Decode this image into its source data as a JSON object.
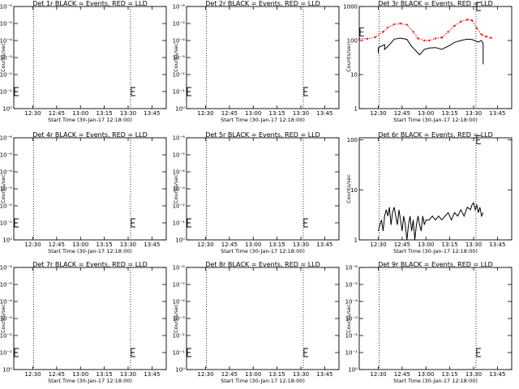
{
  "figure": {
    "background": "#ffffff",
    "axis_color": "#000000",
    "events_color": "#000000",
    "lld_color": "#ff0000"
  },
  "chart_data": [
    {
      "type": "line",
      "title": "Det 1r BLACK = Events, RED = LLD",
      "xlabel": "Start Time (30-Jan-17 12:18:00)",
      "ylabel": "Counts/sec",
      "x_ticks": [
        "12:30",
        "12:45",
        "13:00",
        "13:15",
        "13:30",
        "13:45"
      ],
      "y_scale": "log",
      "y_ticks": [
        "10⁰",
        "10⁻¹",
        "10⁻²",
        "10⁻³",
        "10⁻⁴",
        "10⁻⁵",
        "10⁻⁶"
      ],
      "y_tick_values": [
        1,
        0.1,
        0.01,
        0.001,
        0.0001,
        1e-05,
        1e-06
      ],
      "ylim": [
        1,
        1e-06
      ],
      "xlim": [
        "12:18",
        "13:54"
      ],
      "vlines": [
        "12:30:30",
        "13:31:30"
      ],
      "markers": [
        {
          "x": "12:18:30",
          "y": 0.1
        },
        {
          "x": "13:32",
          "y": 0.1
        }
      ],
      "series": []
    },
    {
      "type": "line",
      "title": "Det 2r BLACK = Events, RED = LLD",
      "xlabel": "Start Time (30-Jan-17 12:18:00)",
      "ylabel": "Counts/sec",
      "x_ticks": [
        "12:30",
        "12:45",
        "13:00",
        "13:15",
        "13:30",
        "13:45"
      ],
      "y_scale": "log",
      "y_ticks": [
        "10⁰",
        "10⁻¹",
        "10⁻²",
        "10⁻³",
        "10⁻⁴",
        "10⁻⁵",
        "10⁻⁶"
      ],
      "y_tick_values": [
        1,
        0.1,
        0.01,
        0.001,
        0.0001,
        1e-05,
        1e-06
      ],
      "ylim": [
        1,
        1e-06
      ],
      "xlim": [
        "12:18",
        "13:54"
      ],
      "vlines": [
        "12:30:30",
        "13:31:30"
      ],
      "markers": [
        {
          "x": "12:18:30",
          "y": 0.1
        },
        {
          "x": "13:32",
          "y": 0.1
        }
      ],
      "series": []
    },
    {
      "type": "line",
      "title": "Det 3r BLACK = Events, RED = LLD",
      "xlabel": "Start Time (30-Jan-17 12:18:00)",
      "ylabel": "Counts/sec",
      "x_ticks": [
        "12:30",
        "12:45",
        "13:00",
        "13:15",
        "13:30",
        "13:45"
      ],
      "y_scale": "log",
      "y_ticks": [
        "1",
        "10",
        "100",
        "1000"
      ],
      "y_tick_values": [
        1,
        10,
        100,
        1000
      ],
      "ylim": [
        1,
        1000
      ],
      "xlim": [
        "12:18",
        "13:54"
      ],
      "vlines": [
        "12:30:30",
        "13:31:30"
      ],
      "markers": [
        {
          "x": "12:18:30",
          "y": 180
        },
        {
          "x": "13:32",
          "y": 1000
        }
      ],
      "series": [
        {
          "role": "lld",
          "color": "#ff0000",
          "dotted": true,
          "x": [
            "12:18",
            "12:23",
            "12:28",
            "12:33",
            "12:36",
            "12:40",
            "12:44",
            "12:48",
            "12:52",
            "12:55",
            "12:59",
            "13:02",
            "13:06",
            "13:10",
            "13:14",
            "13:18",
            "13:22",
            "13:26",
            "13:29",
            "13:32",
            "13:35",
            "13:38",
            "13:41"
          ],
          "values": [
            112,
            112,
            125,
            180,
            240,
            300,
            315,
            290,
            180,
            115,
            100,
            100,
            115,
            122,
            180,
            270,
            360,
            410,
            390,
            230,
            150,
            130,
            120
          ]
        },
        {
          "role": "events",
          "color": "#000000",
          "x": [
            "12:30",
            "12:30",
            "12:34",
            "12:34",
            "12:37",
            "12:40",
            "12:44",
            "12:48",
            "12:51",
            "12:54",
            "12:56",
            "12:59",
            "13:02",
            "13:06",
            "13:10",
            "13:14",
            "13:18",
            "13:22",
            "13:26",
            "13:29",
            "13:31",
            "13:33",
            "13:34",
            "13:35",
            "13:36",
            "13:36"
          ],
          "values": [
            42,
            62,
            75,
            55,
            75,
            110,
            118,
            108,
            67,
            48,
            38,
            55,
            60,
            62,
            55,
            68,
            88,
            100,
            110,
            107,
            98,
            90,
            95,
            100,
            80,
            20
          ]
        }
      ]
    },
    {
      "type": "line",
      "title": "Det 4r BLACK = Events, RED = LLD",
      "xlabel": "Start Time (30-Jan-17 12:18:00)",
      "ylabel": "Counts/sec",
      "x_ticks": [
        "12:30",
        "12:45",
        "13:00",
        "13:15",
        "13:30",
        "13:45"
      ],
      "y_scale": "log",
      "y_ticks": [
        "10⁰",
        "10⁻¹",
        "10⁻²",
        "10⁻³",
        "10⁻⁴",
        "10⁻⁵",
        "10⁻⁶"
      ],
      "y_tick_values": [
        1,
        0.1,
        0.01,
        0.001,
        0.0001,
        1e-05,
        1e-06
      ],
      "ylim": [
        1,
        1e-06
      ],
      "xlim": [
        "12:18",
        "13:54"
      ],
      "vlines": [
        "12:30:30",
        "13:31:30"
      ],
      "markers": [
        {
          "x": "12:18:30",
          "y": 0.1
        },
        {
          "x": "13:32",
          "y": 0.1
        }
      ],
      "series": []
    },
    {
      "type": "line",
      "title": "Det 5r BLACK = Events, RED = LLD",
      "xlabel": "Start Time (30-Jan-17 12:18:00)",
      "ylabel": "Counts/sec",
      "x_ticks": [
        "12:30",
        "12:45",
        "13:00",
        "13:15",
        "13:30",
        "13:45"
      ],
      "y_scale": "log",
      "y_ticks": [
        "10⁰",
        "10⁻¹",
        "10⁻²",
        "10⁻³",
        "10⁻⁴",
        "10⁻⁵",
        "10⁻⁶"
      ],
      "y_tick_values": [
        1,
        0.1,
        0.01,
        0.001,
        0.0001,
        1e-05,
        1e-06
      ],
      "ylim": [
        1,
        1e-06
      ],
      "xlim": [
        "12:18",
        "13:54"
      ],
      "vlines": [
        "12:30:30",
        "13:31:30"
      ],
      "markers": [
        {
          "x": "12:18:30",
          "y": 0.1
        },
        {
          "x": "13:32",
          "y": 0.1
        }
      ],
      "series": []
    },
    {
      "type": "line",
      "title": "Det 6r BLACK = Events, RED = LLD",
      "xlabel": "Start Time (30-Jan-17 12:18:00)",
      "ylabel": "Counts/sec",
      "x_ticks": [
        "12:30",
        "12:45",
        "13:00",
        "13:15",
        "13:30",
        "13:45"
      ],
      "y_scale": "log",
      "y_ticks": [
        "1",
        "10",
        "100"
      ],
      "y_tick_values": [
        1,
        10,
        100
      ],
      "ylim": [
        1,
        110
      ],
      "xlim": [
        "12:18",
        "13:54"
      ],
      "vlines": [
        "12:30:30",
        "13:31:30"
      ],
      "markers": [
        {
          "x": "13:32",
          "y": 100
        }
      ],
      "series": [
        {
          "role": "events",
          "color": "#000000",
          "x": [
            "12:30",
            "12:31",
            "12:32",
            "12:33",
            "12:34",
            "12:35",
            "12:36",
            "12:37",
            "12:38",
            "12:39",
            "12:40",
            "12:41",
            "12:42",
            "12:43",
            "12:44",
            "12:45",
            "12:46",
            "12:47",
            "12:48",
            "12:49",
            "12:50",
            "12:51",
            "12:52",
            "12:53",
            "12:54",
            "12:55",
            "12:56",
            "12:57",
            "12:58",
            "12:59",
            "13:00",
            "13:02",
            "13:04",
            "13:06",
            "13:08",
            "13:10",
            "13:12",
            "13:14",
            "13:16",
            "13:18",
            "13:20",
            "13:22",
            "13:24",
            "13:26",
            "13:28",
            "13:29",
            "13:30",
            "13:31",
            "13:32",
            "13:33",
            "13:34",
            "13:35",
            "13:36"
          ],
          "values": [
            1.5,
            2,
            2.5,
            1.5,
            3,
            4,
            3,
            4.5,
            2,
            3.5,
            4.5,
            3,
            2,
            4,
            2.5,
            1.5,
            3,
            2,
            1,
            2,
            3,
            1.5,
            2.5,
            1,
            2,
            3,
            2,
            1.5,
            3,
            2,
            2.5,
            2.5,
            3,
            2.5,
            3,
            2.5,
            3,
            3.5,
            2.5,
            3.5,
            3,
            4,
            3,
            4.5,
            4,
            5,
            5.5,
            4,
            5,
            3.5,
            4.5,
            3,
            3.5
          ]
        }
      ]
    },
    {
      "type": "line",
      "title": "Det 7r BLACK = Events, RED = LLD",
      "xlabel": "Start Time (30-Jan-17 12:18:00)",
      "ylabel": "Counts/sec",
      "x_ticks": [
        "12:30",
        "12:45",
        "13:00",
        "13:15",
        "13:30",
        "13:45"
      ],
      "y_scale": "log",
      "y_ticks": [
        "10⁰",
        "10⁻¹",
        "10⁻²",
        "10⁻³",
        "10⁻⁴",
        "10⁻⁵",
        "10⁻⁶"
      ],
      "y_tick_values": [
        1,
        0.1,
        0.01,
        0.001,
        0.0001,
        1e-05,
        1e-06
      ],
      "ylim": [
        1,
        1e-06
      ],
      "xlim": [
        "12:18",
        "13:54"
      ],
      "vlines": [
        "12:30:30",
        "13:31:30"
      ],
      "markers": [
        {
          "x": "12:18:30",
          "y": 0.1
        },
        {
          "x": "13:32",
          "y": 0.1
        }
      ],
      "series": []
    },
    {
      "type": "line",
      "title": "Det 8r BLACK = Events, RED = LLD",
      "xlabel": "Start Time (30-Jan-17 12:18:00)",
      "ylabel": "Counts/sec",
      "x_ticks": [
        "12:30",
        "12:45",
        "13:00",
        "13:15",
        "13:30",
        "13:45"
      ],
      "y_scale": "log",
      "y_ticks": [
        "10⁰",
        "10⁻¹",
        "10⁻²",
        "10⁻³",
        "10⁻⁴",
        "10⁻⁵",
        "10⁻⁶"
      ],
      "y_tick_values": [
        1,
        0.1,
        0.01,
        0.001,
        0.0001,
        1e-05,
        1e-06
      ],
      "ylim": [
        1,
        1e-06
      ],
      "xlim": [
        "12:18",
        "13:54"
      ],
      "vlines": [
        "12:30:30",
        "13:31:30"
      ],
      "markers": [
        {
          "x": "12:18:30",
          "y": 0.1
        },
        {
          "x": "13:32",
          "y": 0.1
        }
      ],
      "series": []
    },
    {
      "type": "line",
      "title": "Det 9r BLACK = Events, RED = LLD",
      "xlabel": "Start Time (30-Jan-17 12:18:00)",
      "ylabel": "Counts/sec",
      "x_ticks": [
        "12:30",
        "12:45",
        "13:00",
        "13:15",
        "13:30",
        "13:45"
      ],
      "y_scale": "log",
      "y_ticks": [
        "10⁰",
        "10⁻¹",
        "10⁻²",
        "10⁻³",
        "10⁻⁴",
        "10⁻⁵",
        "10⁻⁶"
      ],
      "y_tick_values": [
        1,
        0.1,
        0.01,
        0.001,
        0.0001,
        1e-05,
        1e-06
      ],
      "ylim": [
        1,
        1e-06
      ],
      "xlim": [
        "12:18",
        "13:54"
      ],
      "vlines": [
        "12:30:30",
        "13:31:30"
      ],
      "markers": [
        {
          "x": "13:32",
          "y": 0.1
        }
      ],
      "series": []
    }
  ]
}
